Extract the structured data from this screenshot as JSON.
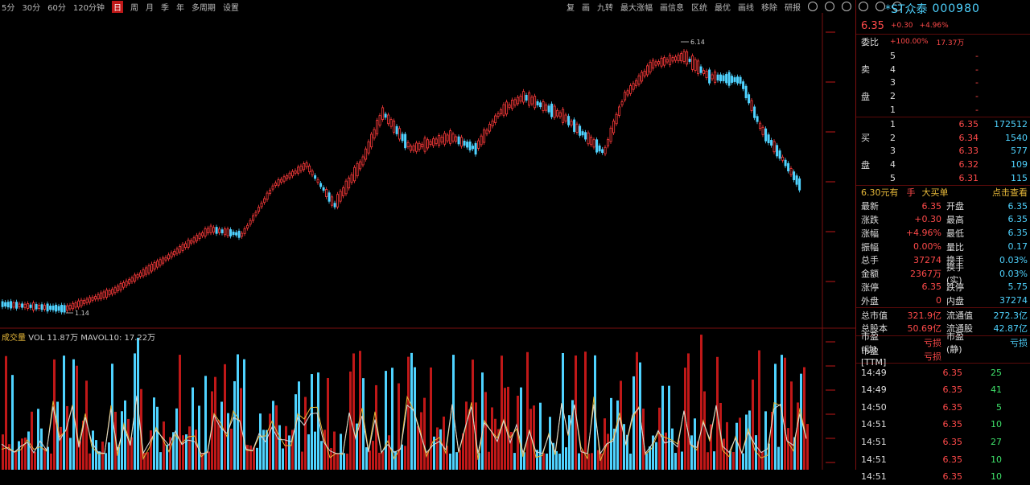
{
  "toolbar_left": [
    "5分",
    "30分",
    "60分",
    "120分钟",
    "日",
    "周",
    "月",
    "季",
    "年",
    "多周期",
    "设置"
  ],
  "toolbar_left_active": 4,
  "toolbar_right": [
    "复",
    "画",
    "九转",
    "最大涨幅",
    "画信息",
    "区统",
    "最优",
    "画线",
    "移除",
    "研报"
  ],
  "volume_label": {
    "title": "成交量",
    "v": "  VOL 11.87万",
    "ma": "MAVOL10: 17.22万"
  },
  "stock": {
    "name": "*ST众泰",
    "code": "000980",
    "price": "6.35",
    "chg": "+0.30",
    "pct": "+4.96%"
  },
  "weibi": {
    "label": "委比",
    "value": "+100.00%",
    "diff": "17.37万"
  },
  "sell_label": [
    "卖",
    "盘"
  ],
  "buy_label": [
    "买",
    "盘"
  ],
  "sell": [
    {
      "lvl": "5",
      "px": "-",
      "vol": ""
    },
    {
      "lvl": "4",
      "px": "-",
      "vol": ""
    },
    {
      "lvl": "3",
      "px": "-",
      "vol": ""
    },
    {
      "lvl": "2",
      "px": "-",
      "vol": ""
    },
    {
      "lvl": "1",
      "px": "-",
      "vol": ""
    }
  ],
  "buy": [
    {
      "lvl": "1",
      "px": "6.35",
      "vol": "172512"
    },
    {
      "lvl": "2",
      "px": "6.34",
      "vol": "1540"
    },
    {
      "lvl": "3",
      "px": "6.33",
      "vol": "577"
    },
    {
      "lvl": "4",
      "px": "6.32",
      "vol": "109"
    },
    {
      "lvl": "5",
      "px": "6.31",
      "vol": "115"
    }
  ],
  "promo": {
    "a": "6.30元有",
    "b": "手",
    "c": "大买单",
    "d": "点击查看"
  },
  "stats": [
    {
      "k1": "最新",
      "v1": "6.35",
      "k2": "开盘",
      "v2": "6.35"
    },
    {
      "k1": "涨跌",
      "v1": "+0.30",
      "k2": "最高",
      "v2": "6.35"
    },
    {
      "k1": "涨幅",
      "v1": "+4.96%",
      "k2": "最低",
      "v2": "6.35"
    },
    {
      "k1": "振幅",
      "v1": "0.00%",
      "k2": "量比",
      "v2": "0.17"
    },
    {
      "k1": "总手",
      "v1": "37274",
      "k2": "换手",
      "v2": "0.03%"
    },
    {
      "k1": "金额",
      "v1": "2367万",
      "k2": "换手(实)",
      "v2": "0.03%"
    },
    {
      "k1": "涨停",
      "v1": "6.35",
      "k2": "跌停",
      "v2": "5.75"
    },
    {
      "k1": "外盘",
      "v1": "0",
      "k2": "内盘",
      "v2": "37274"
    },
    {
      "k1": "总市值",
      "v1": "321.9亿",
      "k2": "流通值",
      "v2": "272.3亿"
    },
    {
      "k1": "总股本",
      "v1": "50.69亿",
      "k2": "流通股",
      "v2": "42.87亿"
    },
    {
      "k1": "市盈(动)",
      "v1": "亏损",
      "k2": "市盈(静)",
      "v2": "亏损"
    },
    {
      "k1": "市盈[TTM]",
      "v1": "亏损",
      "k2": "",
      "v2": ""
    }
  ],
  "ticks": [
    {
      "t": "14:49",
      "p": "6.35",
      "v": "25"
    },
    {
      "t": "14:49",
      "p": "6.35",
      "v": "41"
    },
    {
      "t": "14:50",
      "p": "6.35",
      "v": "5"
    },
    {
      "t": "14:51",
      "p": "6.35",
      "v": "10"
    },
    {
      "t": "14:51",
      "p": "6.35",
      "v": "27"
    },
    {
      "t": "14:51",
      "p": "6.35",
      "v": "10"
    },
    {
      "t": "14:51",
      "p": "6.35",
      "v": "10"
    }
  ],
  "chart_labels": {
    "high": "6.14",
    "low": "1.14"
  },
  "colors": {
    "up": "#ff3b3b",
    "down": "#4fd3ff",
    "ma1": "#e7b93a",
    "ma2": "#ffffff",
    "bg": "#000000"
  }
}
